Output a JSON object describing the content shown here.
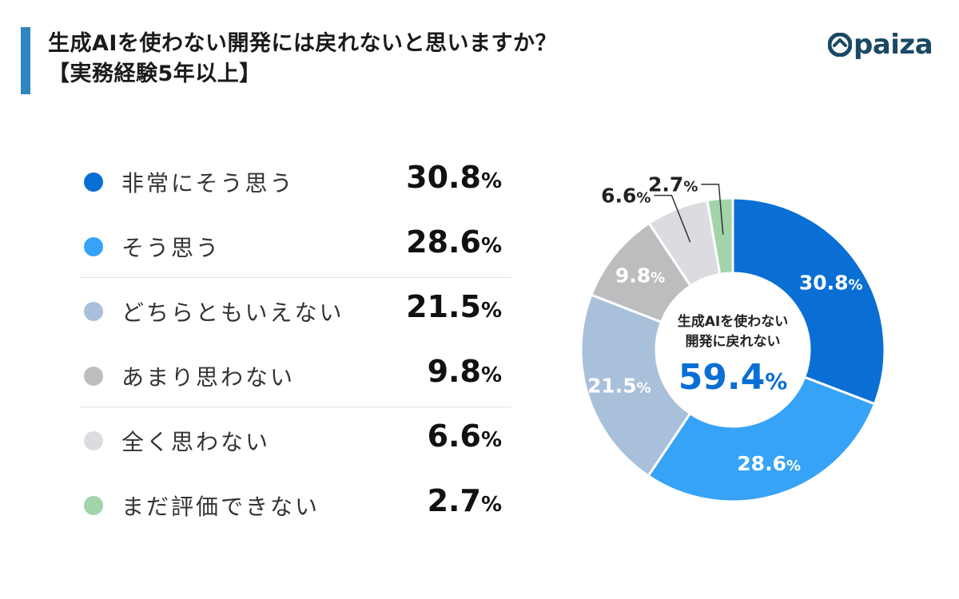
{
  "header": {
    "title_line1": "生成AIを使わない開発には戻れないと思いますか？",
    "title_line2": "【実務経験5年以上】",
    "logo_text": "paiza"
  },
  "chart_data": {
    "type": "pie",
    "donut": true,
    "unit": "%",
    "categories": [
      "非常にそう思う",
      "そう思う",
      "どちらともいえない",
      "あまり思わない",
      "全く思わない",
      "まだ評価できない"
    ],
    "values": [
      30.8,
      28.6,
      21.5,
      9.8,
      6.6,
      2.7
    ],
    "value_labels": [
      "30.8",
      "28.6",
      "21.5",
      "9.8",
      "6.6",
      "2.7"
    ],
    "colors": [
      "#0a6fd4",
      "#36a3f7",
      "#a9c0db",
      "#bdbdc0",
      "#dcdce0",
      "#a3d3a9"
    ],
    "label_colors": [
      "#ffffff",
      "#ffffff",
      "#ffffff",
      "#ffffff",
      "#222222",
      "#222222"
    ],
    "center_label_line1": "生成AIを使わない",
    "center_label_line2": "開発に戻れない",
    "center_value": "59.4",
    "center_value_color": "#0a6fd4",
    "legend_placement": "left"
  }
}
